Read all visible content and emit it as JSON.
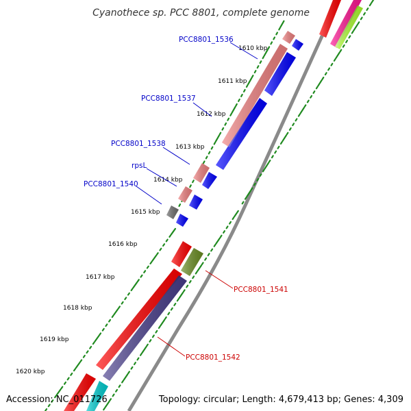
{
  "title": "Cyanothece sp. PCC 8801, complete genome",
  "footer": {
    "accession": "Accession: NC_011726",
    "summary": "Topology: circular; Length: 4,679,413 bp; Genes: 4,309"
  },
  "colors": {
    "backbone": "#8a8a8a",
    "tick_green": "#1f8a1f",
    "label_blue": "#0000c8",
    "label_red": "#cc0000",
    "gene_red": "#ff0000",
    "gene_salmon": "#f08080",
    "gene_blue": "#0000ff",
    "gene_gray": "#6e6e6e",
    "gene_navy": "#483d8b",
    "gene_olive": "#6b8e23",
    "gene_magenta": "#ff1493",
    "gene_lime": "#adff2f",
    "gene_cyan": "#00ced1"
  },
  "kbp_ticks": [
    "1610 kbp",
    "1611 kbp",
    "1612 kbp",
    "1613 kbp",
    "1614 kbp",
    "1615 kbp",
    "1616 kbp",
    "1617 kbp",
    "1618 kbp",
    "1619 kbp",
    "1620 kbp"
  ],
  "gene_labels": [
    {
      "text": "PCC8801_1536",
      "color": "blue"
    },
    {
      "text": "PCC8801_1537",
      "color": "blue"
    },
    {
      "text": "PCC8801_1538",
      "color": "blue"
    },
    {
      "text": "rpsL",
      "color": "blue"
    },
    {
      "text": "PCC8801_1540",
      "color": "blue"
    },
    {
      "text": "PCC8801_1541",
      "color": "red"
    },
    {
      "text": "PCC8801_1542",
      "color": "red"
    }
  ]
}
